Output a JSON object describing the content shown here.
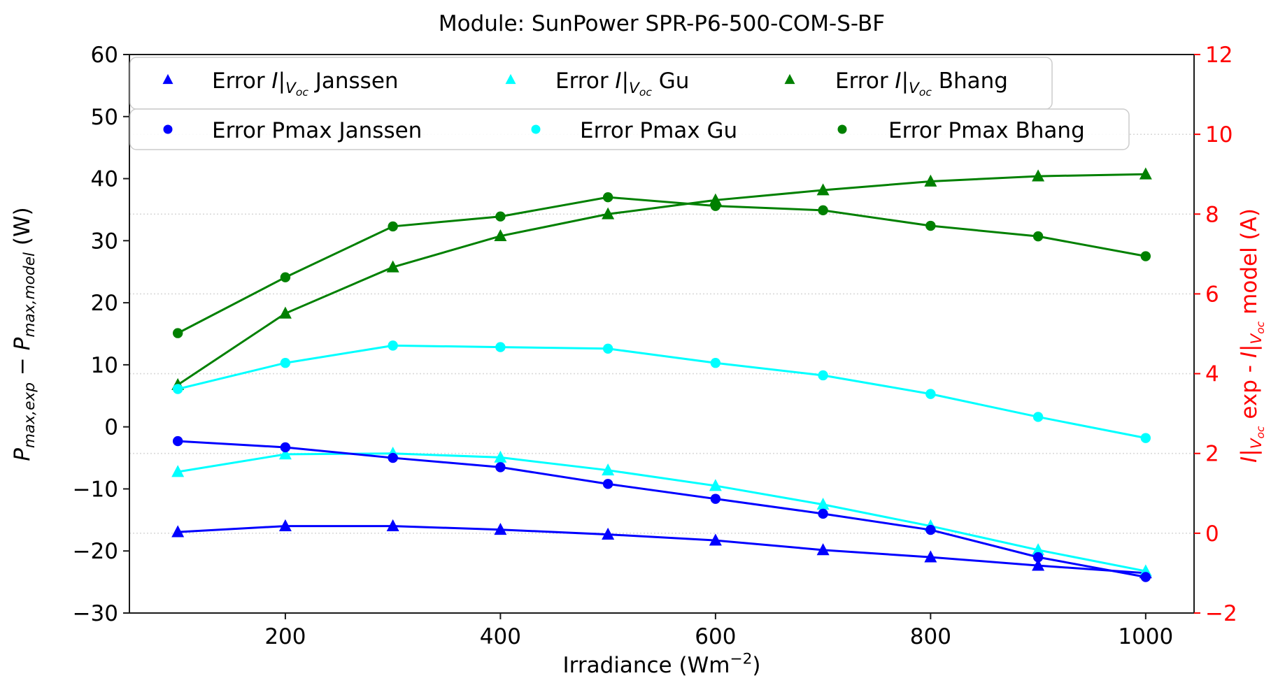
{
  "title": "Module: SunPower SPR-P6-500-COM-S-BF",
  "chart_data": {
    "type": "line",
    "title": "Module: SunPower SPR-P6-500-COM-S-BF",
    "x": [
      100,
      200,
      300,
      400,
      500,
      600,
      700,
      800,
      900,
      1000
    ],
    "xlabel": "Irradiance (Wm^-2)",
    "ylabel_left": "P_max,exp - P_max,model (W)",
    "ylabel_right": "I|V_oc exp - I|V_oc model (A)",
    "grid": "horizontal dotted at right-axis ticks",
    "legend_position": "upper left, two stacked rows of three columns",
    "axes": {
      "x": {
        "min": 55,
        "max": 1045,
        "ticks": [
          200,
          400,
          600,
          800,
          1000
        ]
      },
      "y_left": {
        "min": -30,
        "max": 60,
        "ticks": [
          60,
          50,
          40,
          30,
          20,
          10,
          0,
          -10,
          -20,
          -30
        ],
        "unit": "W",
        "color": "#000000"
      },
      "y_right": {
        "min": -2,
        "max": 12,
        "ticks": [
          12,
          10,
          8,
          6,
          4,
          2,
          0,
          -2
        ],
        "unit": "A",
        "color": "#ff0000"
      }
    },
    "xlabel_rich": [
      {
        "t": "Irradiance (Wm"
      },
      {
        "t": "−2",
        "sc": "sup"
      },
      {
        "t": ")"
      }
    ],
    "ylabel_left_rich": [
      {
        "t": "P",
        "i": true
      },
      {
        "t": "max,exp",
        "i": true,
        "sc": "sub"
      },
      {
        "t": " − "
      },
      {
        "t": "P",
        "i": true
      },
      {
        "t": "max,model",
        "i": true,
        "sc": "sub"
      },
      {
        "t": " (W)"
      }
    ],
    "ylabel_right_rich": [
      {
        "t": "I",
        "i": true
      },
      {
        "t": "|"
      },
      {
        "t": "V",
        "i": true,
        "sc": "sub"
      },
      {
        "t": "oc",
        "i": true,
        "sc": "ssub"
      },
      {
        "t": " exp - "
      },
      {
        "t": "I",
        "i": true
      },
      {
        "t": "|"
      },
      {
        "t": "V",
        "i": true,
        "sc": "sub"
      },
      {
        "t": "oc",
        "i": true,
        "sc": "ssub"
      },
      {
        "t": " model (A)"
      }
    ],
    "series": [
      {
        "name": "Error I|V_oc Janssen",
        "axis": "right",
        "marker": "triangle",
        "color": "#0000ff",
        "label_rich": [
          {
            "t": "Error "
          },
          {
            "t": "I",
            "i": true
          },
          {
            "t": "|"
          },
          {
            "t": "V",
            "i": true,
            "sc": "sub"
          },
          {
            "t": "oc",
            "i": true,
            "sc": "ssub"
          },
          {
            "t": " Janssen"
          }
        ],
        "values": [
          0.03,
          0.18,
          0.18,
          0.09,
          -0.03,
          -0.18,
          -0.42,
          -0.6,
          -0.81,
          -1.0
        ]
      },
      {
        "name": "Error I|V_oc Gu",
        "axis": "right",
        "marker": "triangle",
        "color": "#00ffff",
        "label_rich": [
          {
            "t": "Error "
          },
          {
            "t": "I",
            "i": true
          },
          {
            "t": "|"
          },
          {
            "t": "V",
            "i": true,
            "sc": "sub"
          },
          {
            "t": "oc",
            "i": true,
            "sc": "ssub"
          },
          {
            "t": " Gu"
          }
        ],
        "values": [
          1.54,
          1.98,
          2.0,
          1.9,
          1.58,
          1.19,
          0.72,
          0.18,
          -0.42,
          -0.95
        ]
      },
      {
        "name": "Error I|V_oc Bhang",
        "axis": "right",
        "marker": "triangle",
        "color": "#008000",
        "label_rich": [
          {
            "t": "Error "
          },
          {
            "t": "I",
            "i": true
          },
          {
            "t": "|"
          },
          {
            "t": "V",
            "i": true,
            "sc": "sub"
          },
          {
            "t": "oc",
            "i": true,
            "sc": "ssub"
          },
          {
            "t": " Bhang"
          }
        ],
        "values": [
          3.72,
          5.51,
          6.67,
          7.45,
          8.0,
          8.35,
          8.6,
          8.82,
          8.95,
          9.0
        ]
      },
      {
        "name": "Error Pmax Janssen",
        "axis": "left",
        "marker": "circle",
        "color": "#0000ff",
        "label_rich": [
          {
            "t": "Error Pmax Janssen"
          }
        ],
        "values": [
          -2.3,
          -3.3,
          -5.0,
          -6.5,
          -9.2,
          -11.6,
          -14.0,
          -16.6,
          -21.0,
          -24.2
        ]
      },
      {
        "name": "Error Pmax Gu",
        "axis": "left",
        "marker": "circle",
        "color": "#00ffff",
        "label_rich": [
          {
            "t": "Error Pmax Gu"
          }
        ],
        "values": [
          6.1,
          10.3,
          13.1,
          12.85,
          12.6,
          10.3,
          8.3,
          5.3,
          1.6,
          -1.8
        ]
      },
      {
        "name": "Error Pmax Bhang",
        "axis": "left",
        "marker": "circle",
        "color": "#008000",
        "label_rich": [
          {
            "t": "Error Pmax Bhang"
          }
        ],
        "values": [
          15.1,
          24.1,
          32.3,
          33.9,
          37.0,
          35.6,
          34.9,
          32.4,
          30.7,
          27.5
        ]
      }
    ],
    "legend_rows": [
      [
        0,
        1,
        2
      ],
      [
        3,
        4,
        5
      ]
    ]
  }
}
